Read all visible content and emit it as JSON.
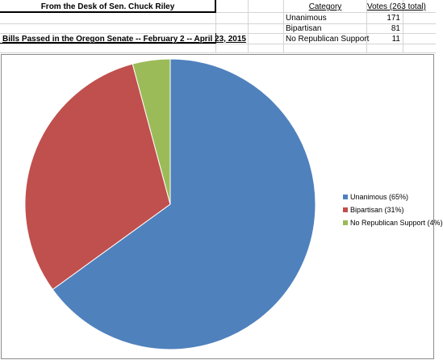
{
  "sheet": {
    "title": "From the Desk of Sen. Chuck Riley",
    "subtitle": "Bills Passed in the Oregon Senate -- February 2 -- April 23, 2015",
    "col_category": "Category",
    "col_votes": "Votes (263 total)",
    "rows": [
      {
        "category": "Unanimous",
        "votes": "171"
      },
      {
        "category": "Bipartisan",
        "votes": "81"
      },
      {
        "category": "No Republican Support",
        "votes": "11"
      }
    ]
  },
  "chart_data": {
    "type": "pie",
    "title": "",
    "total": 263,
    "slices": [
      {
        "label": "Unanimous (65%)",
        "value": 171,
        "color": "#4f81bd"
      },
      {
        "label": "Bipartisan (31%)",
        "value": 81,
        "color": "#c0504d"
      },
      {
        "label": "No Republican Support (4%)",
        "value": 11,
        "color": "#9bbb59"
      }
    ],
    "legend_position": "right"
  }
}
